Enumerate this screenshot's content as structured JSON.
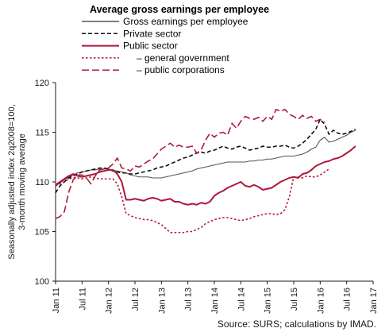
{
  "chart_data": {
    "type": "line",
    "title": "Average gross earnings per employee",
    "ylabel": "Seasonally adjusted index 2q2008=100, 3-month moving average",
    "ylabel_lines": [
      "Seasonally adjusted index 2q2008=100,",
      "3-month moving average"
    ],
    "source": "Source: SURS; calculations by IMAD.",
    "ylim": [
      100,
      120
    ],
    "yticks": [
      100,
      105,
      110,
      115,
      120
    ],
    "xlim": [
      0,
      72
    ],
    "xtick_labels": [
      "Jan 11",
      "Jul 11",
      "Jan 12",
      "Jul 12",
      "Jan 13",
      "Jul 13",
      "Jan 14",
      "Jul 14",
      "Jan 15",
      "Jul 15",
      "Jan 16",
      "Jul 16",
      "Jan 17"
    ],
    "grid": false,
    "legend_position": "top-left",
    "series": [
      {
        "name": "Gross earnings per employee",
        "color": "#555555",
        "style": "solid",
        "values": [
          109.6,
          109.9,
          110.2,
          110.5,
          110.7,
          110.9,
          111.0,
          111.1,
          111.2,
          111.2,
          111.3,
          111.3,
          111.3,
          111.2,
          111.1,
          111.0,
          110.9,
          110.7,
          110.6,
          110.5,
          110.5,
          110.5,
          110.4,
          110.4,
          110.4,
          110.5,
          110.6,
          110.7,
          110.8,
          110.9,
          111.0,
          111.1,
          111.3,
          111.4,
          111.5,
          111.6,
          111.7,
          111.8,
          111.9,
          112.0,
          112.0,
          112.0,
          112.0,
          112.0,
          112.1,
          112.1,
          112.2,
          112.2,
          112.3,
          112.3,
          112.4,
          112.5,
          112.6,
          112.6,
          112.6,
          112.7,
          112.8,
          113.0,
          113.3,
          113.5,
          114.2,
          114.5,
          114.0,
          114.1,
          114.3,
          114.5,
          114.7,
          115.0,
          115.2
        ]
      },
      {
        "name": "Private sector",
        "color": "#111111",
        "style": "dashed",
        "values": [
          108.9,
          109.6,
          110.0,
          110.4,
          110.6,
          110.8,
          111.0,
          111.1,
          111.2,
          111.3,
          111.4,
          111.4,
          111.3,
          111.1,
          111.0,
          110.9,
          110.9,
          110.8,
          110.8,
          110.9,
          111.0,
          111.1,
          111.2,
          111.4,
          111.5,
          111.6,
          111.8,
          112.0,
          112.2,
          112.4,
          112.5,
          112.7,
          112.9,
          113.0,
          112.9,
          113.1,
          113.2,
          113.4,
          113.6,
          113.4,
          113.3,
          113.5,
          113.6,
          113.4,
          113.2,
          113.3,
          113.4,
          113.6,
          113.5,
          113.5,
          113.6,
          113.6,
          113.7,
          113.5,
          113.4,
          113.6,
          113.9,
          114.3,
          114.8,
          115.3,
          116.3,
          115.8,
          114.8,
          115.2,
          114.9,
          114.8,
          114.9,
          115.1,
          115.3
        ]
      },
      {
        "name": "Public sector",
        "color": "#b0183c",
        "style": "solid",
        "values": [
          109.7,
          110.0,
          110.3,
          110.6,
          110.8,
          110.6,
          110.5,
          110.6,
          110.7,
          110.8,
          111.0,
          111.1,
          111.2,
          111.2,
          110.8,
          110.0,
          108.2,
          108.2,
          108.3,
          108.2,
          108.1,
          108.3,
          108.4,
          108.3,
          108.1,
          108.2,
          108.3,
          108.0,
          108.0,
          107.8,
          107.7,
          107.8,
          107.7,
          107.9,
          107.8,
          108.0,
          108.6,
          108.9,
          109.1,
          109.4,
          109.6,
          109.8,
          110.0,
          109.6,
          109.5,
          109.7,
          109.5,
          109.2,
          109.3,
          109.4,
          109.7,
          110.0,
          110.2,
          110.4,
          110.5,
          110.4,
          110.8,
          110.9,
          111.2,
          111.6,
          111.8,
          112.0,
          112.1,
          112.3,
          112.4,
          112.6,
          112.9,
          113.2,
          113.6
        ]
      },
      {
        "name": "– general government",
        "color": "#b0183c",
        "style": "dotted",
        "values": [
          109.6,
          109.8,
          110.0,
          110.3,
          110.4,
          110.4,
          110.3,
          110.4,
          110.5,
          110.4,
          110.3,
          110.3,
          110.3,
          110.3,
          109.8,
          108.5,
          106.8,
          106.6,
          106.4,
          106.3,
          106.2,
          106.2,
          106.1,
          105.9,
          105.7,
          105.3,
          104.9,
          104.9,
          104.9,
          104.9,
          105.0,
          105.0,
          105.2,
          105.4,
          105.8,
          106.0,
          106.2,
          106.3,
          106.4,
          106.4,
          106.3,
          106.2,
          106.1,
          106.2,
          106.3,
          106.5,
          106.6,
          106.7,
          106.8,
          106.8,
          106.7,
          106.8,
          107.2,
          108.5,
          110.5,
          110.5,
          110.4,
          110.6,
          110.5,
          110.5,
          110.7,
          111.0,
          111.3
        ]
      },
      {
        "name": "– public corporations",
        "color": "#b0183c",
        "style": "longdash",
        "values": [
          106.3,
          106.5,
          107.0,
          109.0,
          110.2,
          110.7,
          110.7,
          110.4,
          109.8,
          110.6,
          111.2,
          111.3,
          111.4,
          111.8,
          112.4,
          111.4,
          111.3,
          111.1,
          111.6,
          111.5,
          111.8,
          112.1,
          112.3,
          112.8,
          113.3,
          113.6,
          113.9,
          113.5,
          113.7,
          113.5,
          113.5,
          113.6,
          112.9,
          113.2,
          114.2,
          114.9,
          114.5,
          114.9,
          115.0,
          114.7,
          115.9,
          115.4,
          116.1,
          116.6,
          116.4,
          116.3,
          116.5,
          116.1,
          116.6,
          116.3,
          117.3,
          117.1,
          117.3,
          116.8,
          116.6,
          116.3,
          116.7,
          116.4,
          116.6,
          116.1,
          116.3,
          116.0
        ]
      }
    ]
  }
}
